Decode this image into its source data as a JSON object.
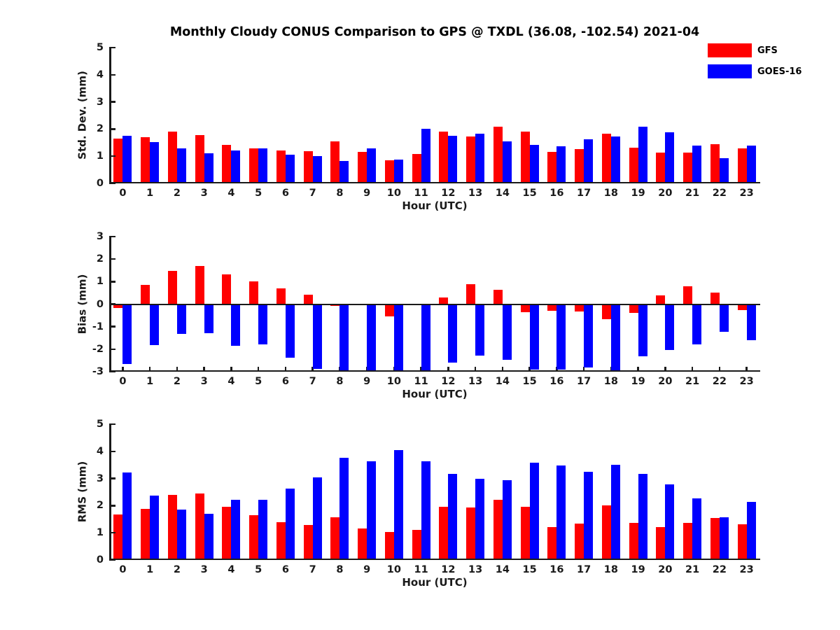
{
  "title": "Monthly Cloudy CONUS Comparison to GPS @ TXDL (36.08, -102.54) 2021-04",
  "legend": {
    "items": [
      {
        "label": "GFS",
        "color": "#ff0000"
      },
      {
        "label": "GOES-16",
        "color": "#0000ff"
      }
    ]
  },
  "colors": {
    "gfs": "#ff0000",
    "goes16": "#0000ff",
    "axis": "#1a1a1a",
    "background": "#ffffff"
  },
  "chart_data": [
    {
      "type": "bar",
      "id": "stddev",
      "ylabel": "Std. Dev. (mm)",
      "xlabel": "Hour (UTC)",
      "ylim": [
        0,
        5
      ],
      "yticks": [
        0,
        1,
        2,
        3,
        4,
        5
      ],
      "grid": false,
      "legend_position": "top-right",
      "categories": [
        "0",
        "1",
        "2",
        "3",
        "4",
        "5",
        "6",
        "7",
        "8",
        "9",
        "10",
        "11",
        "12",
        "13",
        "14",
        "15",
        "16",
        "17",
        "18",
        "19",
        "20",
        "21",
        "22",
        "23"
      ],
      "series": [
        {
          "name": "GFS",
          "color": "#ff0000",
          "values": [
            1.65,
            1.7,
            1.9,
            1.77,
            1.42,
            1.28,
            1.2,
            1.18,
            1.55,
            1.15,
            0.85,
            1.08,
            1.9,
            1.72,
            2.1,
            1.92,
            1.15,
            1.27,
            1.84,
            1.31,
            1.13,
            1.13,
            1.45,
            1.3
          ]
        },
        {
          "name": "GOES-16",
          "color": "#0000ff",
          "values": [
            1.75,
            1.52,
            1.3,
            1.1,
            1.2,
            1.3,
            1.05,
            1.0,
            0.82,
            1.3,
            0.87,
            2.02,
            1.75,
            1.83,
            1.55,
            1.42,
            1.37,
            1.62,
            1.72,
            2.1,
            1.87,
            1.38,
            0.93,
            1.38
          ]
        }
      ]
    },
    {
      "type": "bar",
      "id": "bias",
      "ylabel": "Bias (mm)",
      "xlabel": "Hour (UTC)",
      "ylim": [
        -3,
        3
      ],
      "yticks": [
        -3,
        -2,
        -1,
        0,
        1,
        2,
        3
      ],
      "grid": false,
      "zero_line": true,
      "categories": [
        "0",
        "1",
        "2",
        "3",
        "4",
        "5",
        "6",
        "7",
        "8",
        "9",
        "10",
        "11",
        "12",
        "13",
        "14",
        "15",
        "16",
        "17",
        "18",
        "19",
        "20",
        "21",
        "22",
        "23"
      ],
      "series": [
        {
          "name": "GFS",
          "color": "#ff0000",
          "values": [
            -0.18,
            0.85,
            1.47,
            1.7,
            1.33,
            1.0,
            0.7,
            0.42,
            -0.07,
            0.0,
            -0.55,
            0.0,
            0.31,
            0.88,
            0.63,
            -0.35,
            -0.28,
            -0.33,
            -0.68,
            -0.38,
            0.38,
            0.78,
            0.5,
            -0.25
          ]
        },
        {
          "name": "GOES-16",
          "color": "#0000ff",
          "values": [
            -2.65,
            -1.82,
            -1.33,
            -1.28,
            -1.85,
            -1.8,
            -2.37,
            -2.88,
            -3.0,
            -3.0,
            -3.0,
            -3.0,
            -2.6,
            -2.3,
            -2.48,
            -2.9,
            -2.9,
            -2.8,
            -2.98,
            -2.33,
            -2.05,
            -1.8,
            -1.22,
            -1.6
          ]
        }
      ]
    },
    {
      "type": "bar",
      "id": "rms",
      "ylabel": "RMS (mm)",
      "xlabel": "Hour (UTC)",
      "ylim": [
        0,
        5
      ],
      "yticks": [
        0,
        1,
        2,
        3,
        4,
        5
      ],
      "grid": false,
      "categories": [
        "0",
        "1",
        "2",
        "3",
        "4",
        "5",
        "6",
        "7",
        "8",
        "9",
        "10",
        "11",
        "12",
        "13",
        "14",
        "15",
        "16",
        "17",
        "18",
        "19",
        "20",
        "21",
        "22",
        "23"
      ],
      "series": [
        {
          "name": "GFS",
          "color": "#ff0000",
          "values": [
            1.68,
            1.88,
            2.4,
            2.45,
            1.97,
            1.65,
            1.4,
            1.28,
            1.58,
            1.15,
            1.02,
            1.1,
            1.95,
            1.93,
            2.22,
            1.97,
            1.2,
            1.33,
            2.0,
            1.37,
            1.22,
            1.37,
            1.55,
            1.32
          ]
        },
        {
          "name": "GOES-16",
          "color": "#0000ff",
          "values": [
            3.22,
            2.37,
            1.85,
            1.7,
            2.22,
            2.22,
            2.63,
            3.05,
            3.77,
            3.63,
            4.05,
            3.63,
            3.17,
            3.0,
            2.93,
            3.58,
            3.47,
            3.25,
            3.5,
            3.17,
            2.78,
            2.28,
            1.57,
            2.13
          ]
        }
      ]
    }
  ]
}
